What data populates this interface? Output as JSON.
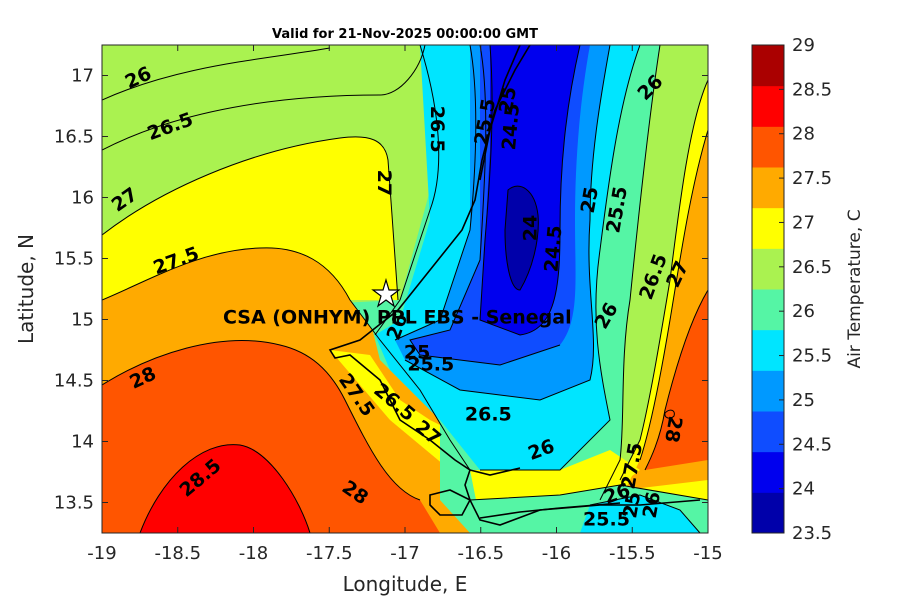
{
  "chart_data": {
    "type": "heatmap",
    "title": "Valid for 21-Nov-2025 00:00:00 GMT",
    "xlabel": "Longitude, E",
    "ylabel": "Latitude, N",
    "xlim": [
      -19,
      -15
    ],
    "ylim": [
      13.25,
      17.25
    ],
    "x_ticks": [
      "-19",
      "-18.5",
      "-18",
      "-17.5",
      "-17",
      "-16.5",
      "-16",
      "-15.5",
      "-15"
    ],
    "y_ticks": [
      "13.5",
      "14",
      "14.5",
      "15",
      "15.5",
      "16",
      "16.5",
      "17"
    ],
    "colorbar": {
      "label": "Air Temperature, C",
      "range": [
        23.5,
        29
      ],
      "ticks": [
        "23.5",
        "24",
        "24.5",
        "25",
        "25.5",
        "26",
        "26.5",
        "27",
        "27.5",
        "28",
        "28.5",
        "29"
      ],
      "colors": [
        "#0000aa",
        "#0000ee",
        "#0f4dff",
        "#0099ff",
        "#00e5ff",
        "#55f5a5",
        "#aaf250",
        "#ffff00",
        "#ffaa00",
        "#ff5500",
        "#ff0000",
        "#aa0000"
      ]
    },
    "contour_labels": [
      {
        "text": "26",
        "lon": -18.76,
        "lat": 16.98,
        "rot": -25
      },
      {
        "text": "26.5",
        "lon": -18.55,
        "lat": 16.58,
        "rot": -20
      },
      {
        "text": "27",
        "lon": -18.85,
        "lat": 15.98,
        "rot": -35
      },
      {
        "text": "27.5",
        "lon": -18.51,
        "lat": 15.48,
        "rot": -20
      },
      {
        "text": "28",
        "lon": -18.73,
        "lat": 14.52,
        "rot": -25
      },
      {
        "text": "28.5",
        "lon": -18.35,
        "lat": 13.7,
        "rot": -40
      },
      {
        "text": "28",
        "lon": -17.33,
        "lat": 13.58,
        "rot": 35
      },
      {
        "text": "27.5",
        "lon": -17.32,
        "lat": 14.38,
        "rot": 55
      },
      {
        "text": "26.5",
        "lon": -17.07,
        "lat": 14.32,
        "rot": 40
      },
      {
        "text": "27",
        "lon": -16.85,
        "lat": 14.07,
        "rot": 40
      },
      {
        "text": "26",
        "lon": -17.05,
        "lat": 14.94,
        "rot": -70
      },
      {
        "text": "25",
        "lon": -16.92,
        "lat": 14.73,
        "rot": 0
      },
      {
        "text": "25.5",
        "lon": -16.83,
        "lat": 14.63,
        "rot": 0
      },
      {
        "text": "26.5",
        "lon": -16.45,
        "lat": 14.22,
        "rot": 0
      },
      {
        "text": "26",
        "lon": -16.1,
        "lat": 13.93,
        "rot": -20
      },
      {
        "text": "27",
        "lon": -17.14,
        "lat": 16.12,
        "rot": 90
      },
      {
        "text": "26.5",
        "lon": -16.79,
        "lat": 16.56,
        "rot": 90
      },
      {
        "text": "25.5",
        "lon": -16.47,
        "lat": 16.62,
        "rot": -80
      },
      {
        "text": "25",
        "lon": -16.32,
        "lat": 16.8,
        "rot": -80
      },
      {
        "text": "24.5",
        "lon": -16.3,
        "lat": 16.58,
        "rot": -85
      },
      {
        "text": "24",
        "lon": -16.17,
        "lat": 15.75,
        "rot": -90
      },
      {
        "text": "24.5",
        "lon": -16.02,
        "lat": 15.58,
        "rot": -85
      },
      {
        "text": "25",
        "lon": -15.78,
        "lat": 15.98,
        "rot": -80
      },
      {
        "text": "25.5",
        "lon": -15.6,
        "lat": 15.9,
        "rot": -80
      },
      {
        "text": "26",
        "lon": -15.38,
        "lat": 16.9,
        "rot": -45
      },
      {
        "text": "26.5",
        "lon": -15.36,
        "lat": 15.35,
        "rot": -70
      },
      {
        "text": "27",
        "lon": -15.2,
        "lat": 15.37,
        "rot": -65
      },
      {
        "text": "26",
        "lon": -15.67,
        "lat": 15.03,
        "rot": -60
      },
      {
        "text": "27.5",
        "lon": -15.5,
        "lat": 13.8,
        "rot": -80
      },
      {
        "text": "28",
        "lon": -15.23,
        "lat": 14.1,
        "rot": 100
      },
      {
        "text": "26",
        "lon": -15.6,
        "lat": 13.57,
        "rot": -20
      },
      {
        "text": "25.5",
        "lon": -15.67,
        "lat": 13.36,
        "rot": 0
      },
      {
        "text": "25",
        "lon": -15.5,
        "lat": 13.48,
        "rot": -80
      },
      {
        "text": "26",
        "lon": -15.37,
        "lat": 13.48,
        "rot": -80
      }
    ],
    "site": {
      "name": "CSA (ONHYM) PPL EBS  - Senegal",
      "lon": -17.13,
      "lat": 15.23
    }
  }
}
